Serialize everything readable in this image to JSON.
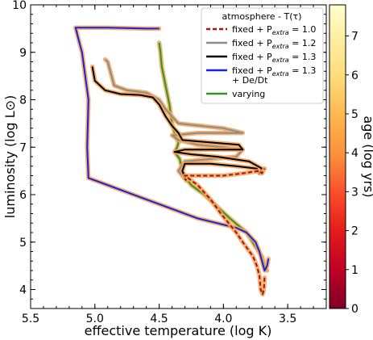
{
  "chart_data": {
    "type": "line",
    "xlabel": "effective temperature (log K)",
    "ylabel": "luminosity (log L⊙)",
    "xlim": [
      5.5,
      3.2
    ],
    "ylim": [
      3.6,
      10.0
    ],
    "x_ticks": [
      "5.5",
      "5.0",
      "4.5",
      "4.0",
      "3.5"
    ],
    "x_tick_values": [
      5.5,
      5.0,
      4.5,
      4.0,
      3.5
    ],
    "y_ticks": [
      "4",
      "5",
      "6",
      "7",
      "8",
      "9",
      "10"
    ],
    "y_tick_values": [
      4,
      5,
      6,
      7,
      8,
      9,
      10
    ],
    "x_inverted": true,
    "legend": {
      "title": "atmosphere - T(τ)",
      "placement": "top-right",
      "entries": [
        {
          "label": "fixed + Pextra = 1.0",
          "base": "fixed + P",
          "sub": "extra",
          "rest": " = 1.0",
          "color": "#a01515",
          "style": "dashed"
        },
        {
          "label": "fixed + Pextra = 1.2",
          "base": "fixed + P",
          "sub": "extra",
          "rest": " = 1.2",
          "color": "#8c8c8c",
          "style": "solid"
        },
        {
          "label": "fixed + Pextra = 1.3",
          "base": "fixed + P",
          "sub": "extra",
          "rest": " = 1.3",
          "color": "#000000",
          "style": "solid"
        },
        {
          "label": "fixed + Pextra = 1.3 + De/Dt",
          "base": "fixed + P",
          "sub": "extra",
          "rest": " = 1.3",
          "line2": "+ De/Dt",
          "color": "#1a22dd",
          "style": "solid"
        },
        {
          "label": "varying",
          "base": "varying",
          "sub": "",
          "rest": "",
          "color": "#2a9a1e",
          "style": "solid"
        }
      ]
    },
    "colorbar": {
      "label": "age (log yrs)",
      "range": [
        0,
        7.8
      ],
      "ticks": [
        "0",
        "1",
        "2",
        "3",
        "4",
        "5",
        "6",
        "7"
      ],
      "tick_values": [
        0,
        1,
        2,
        3,
        4,
        5,
        6,
        7
      ],
      "colormap": "YlOrRd_r"
    },
    "series": [
      {
        "name": "fixed + Pextra = 1.0",
        "color": "#a01515",
        "style": "dashed",
        "points": [
          [
            3.68,
            4.25
          ],
          [
            3.685,
            4.0
          ],
          [
            3.695,
            3.9
          ],
          [
            3.71,
            4.0
          ],
          [
            3.72,
            4.3
          ],
          [
            3.74,
            4.5
          ],
          [
            3.77,
            4.7
          ],
          [
            3.85,
            5.0
          ],
          [
            3.9,
            5.2
          ],
          [
            4.02,
            5.6
          ],
          [
            4.1,
            5.9
          ],
          [
            4.15,
            6.05
          ],
          [
            4.2,
            6.2
          ],
          [
            4.25,
            6.3
          ],
          [
            4.3,
            6.4
          ],
          [
            4.2,
            6.4
          ],
          [
            4.0,
            6.4
          ],
          [
            3.85,
            6.45
          ],
          [
            3.72,
            6.5
          ],
          [
            3.7,
            6.45
          ],
          [
            3.68,
            6.55
          ]
        ]
      },
      {
        "name": "fixed + Pextra = 1.2",
        "color": "#8c8c8c",
        "style": "solid",
        "points": [
          [
            4.29,
            6.3
          ],
          [
            4.35,
            6.5
          ],
          [
            4.3,
            6.7
          ],
          [
            4.1,
            6.75
          ],
          [
            3.9,
            6.8
          ],
          [
            3.85,
            6.95
          ],
          [
            4.0,
            7.0
          ],
          [
            4.2,
            7.05
          ],
          [
            4.35,
            7.15
          ],
          [
            4.4,
            7.25
          ],
          [
            4.2,
            7.3
          ],
          [
            4.0,
            7.3
          ],
          [
            3.85,
            7.3
          ],
          [
            4.0,
            7.4
          ],
          [
            4.35,
            7.5
          ],
          [
            4.45,
            7.8
          ],
          [
            4.5,
            8.0
          ],
          [
            4.6,
            8.15
          ],
          [
            4.75,
            8.2
          ],
          [
            4.85,
            8.3
          ],
          [
            4.88,
            8.6
          ],
          [
            4.9,
            8.8
          ],
          [
            4.92,
            8.85
          ]
        ]
      },
      {
        "name": "fixed + Pextra = 1.3",
        "color": "#000000",
        "style": "solid",
        "points": [
          [
            4.29,
            6.3
          ],
          [
            4.32,
            6.5
          ],
          [
            4.3,
            6.65
          ],
          [
            4.1,
            6.65
          ],
          [
            3.9,
            6.6
          ],
          [
            3.74,
            6.55
          ],
          [
            3.72,
            6.45
          ],
          [
            3.7,
            6.55
          ],
          [
            3.8,
            6.7
          ],
          [
            4.05,
            6.8
          ],
          [
            4.25,
            6.85
          ],
          [
            4.38,
            6.9
          ],
          [
            4.3,
            6.95
          ],
          [
            4.05,
            6.95
          ],
          [
            3.85,
            6.95
          ],
          [
            3.88,
            7.05
          ],
          [
            4.1,
            7.1
          ],
          [
            4.32,
            7.15
          ],
          [
            4.35,
            7.3
          ],
          [
            4.4,
            7.45
          ],
          [
            4.45,
            7.65
          ],
          [
            4.5,
            7.9
          ],
          [
            4.55,
            8.05
          ],
          [
            4.65,
            8.1
          ],
          [
            4.8,
            8.12
          ],
          [
            4.92,
            8.2
          ],
          [
            5.0,
            8.4
          ],
          [
            5.02,
            8.7
          ]
        ]
      },
      {
        "name": "fixed + Pextra = 1.3 + De/Dt",
        "color": "#1a22dd",
        "style": "solid",
        "points": [
          [
            3.65,
            4.65
          ],
          [
            3.66,
            4.5
          ],
          [
            3.68,
            4.4
          ],
          [
            3.7,
            4.6
          ],
          [
            3.72,
            4.8
          ],
          [
            3.75,
            5.0
          ],
          [
            3.82,
            5.2
          ],
          [
            3.9,
            5.3
          ],
          [
            4.2,
            5.5
          ],
          [
            4.6,
            5.9
          ],
          [
            5.05,
            6.35
          ],
          [
            5.06,
            7.0
          ],
          [
            5.05,
            8.0
          ],
          [
            5.08,
            8.6
          ],
          [
            5.1,
            9.0
          ],
          [
            5.12,
            9.2
          ],
          [
            5.15,
            9.52
          ],
          [
            4.9,
            9.52
          ],
          [
            4.6,
            9.5
          ],
          [
            4.5,
            9.5
          ]
        ]
      },
      {
        "name": "varying",
        "color": "#2a9a1e",
        "style": "solid",
        "points": [
          [
            3.66,
            4.4
          ],
          [
            3.68,
            4.5
          ],
          [
            3.7,
            4.7
          ],
          [
            3.75,
            4.9
          ],
          [
            3.82,
            5.2
          ],
          [
            3.95,
            5.5
          ],
          [
            4.05,
            5.75
          ],
          [
            4.15,
            6.0
          ],
          [
            4.25,
            6.2
          ],
          [
            4.28,
            6.3
          ],
          [
            4.32,
            6.5
          ],
          [
            4.34,
            6.75
          ],
          [
            4.38,
            6.9
          ],
          [
            4.36,
            7.0
          ],
          [
            4.35,
            7.1
          ],
          [
            4.38,
            7.3
          ],
          [
            4.4,
            7.5
          ],
          [
            4.42,
            7.9
          ],
          [
            4.45,
            8.3
          ],
          [
            4.48,
            8.7
          ],
          [
            4.49,
            9.0
          ],
          [
            4.5,
            9.2
          ]
        ]
      }
    ]
  }
}
